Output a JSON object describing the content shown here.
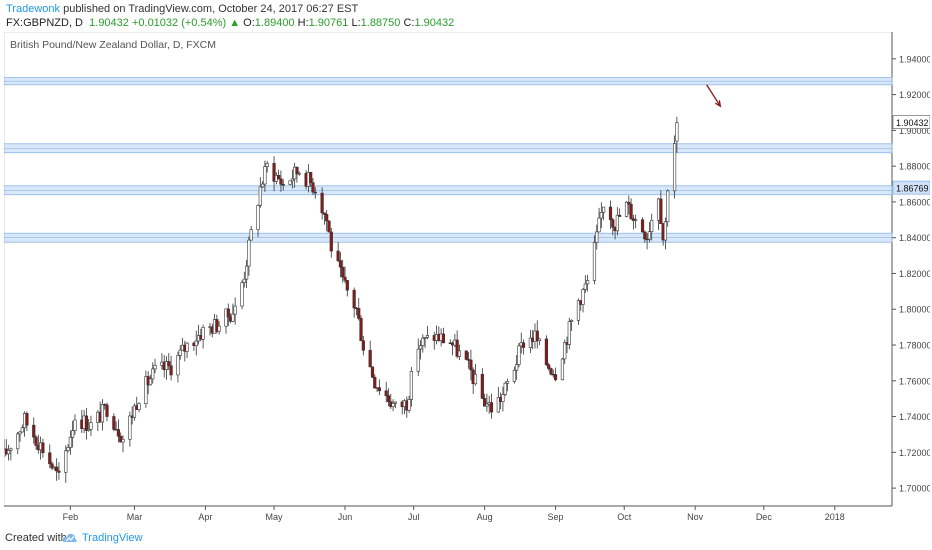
{
  "header": {
    "author": "Tradewonk",
    "published_text": "published on TradingView.com, October 24, 2017 06:27 EST",
    "symbol": "FX:GBPNZD, D",
    "last": "1.90432",
    "change": "+0.01032 (+0.54%)",
    "o_label": "O:",
    "o_value": "1.89400",
    "h_label": "H:",
    "h_value": "1.90761",
    "l_label": "L:",
    "l_value": "1.88750",
    "c_label": "C:",
    "c_value": "1.90432",
    "up_arrow": "▲"
  },
  "footer": {
    "created_with": "Created with",
    "brand": "TradingView",
    "logo_icon": "tradingview-cloud-icon"
  },
  "chart_data": {
    "type": "candlestick",
    "title": "British Pound/New Zealand Dollar, D, FXCM",
    "ylim": [
      1.69,
      1.955
    ],
    "y_ticks": [
      "1.94000",
      "1.92000",
      "1.90000",
      "1.88000",
      "1.86000",
      "1.84000",
      "1.82000",
      "1.80000",
      "1.78000",
      "1.76000",
      "1.74000",
      "1.72000",
      "1.70000"
    ],
    "x_ticks": [
      "Feb",
      "Mar",
      "Apr",
      "May",
      "Jun",
      "Jul",
      "Aug",
      "Sep",
      "Oct",
      "Nov",
      "Dec",
      "2018"
    ],
    "x_tick_dates": [
      "2017-02-01",
      "2017-03-01",
      "2017-04-01",
      "2017-05-01",
      "2017-06-01",
      "2017-07-01",
      "2017-08-01",
      "2017-09-01",
      "2017-10-01",
      "2017-11-01",
      "2017-12-01",
      "2018-01-01"
    ],
    "x_range": [
      "2017-01-03",
      "2018-01-26"
    ],
    "price_labels": [
      {
        "text": "1.90432",
        "value": 1.90432,
        "style": "plain"
      },
      {
        "text": "1.86769",
        "value": 1.86769,
        "style": "highlight"
      }
    ],
    "zones": [
      {
        "low": 1.9255,
        "high": 1.9295
      },
      {
        "low": 1.8875,
        "high": 1.8925
      },
      {
        "low": 1.864,
        "high": 1.869
      },
      {
        "low": 1.8375,
        "high": 1.8425
      }
    ],
    "annotation": {
      "type": "arrow",
      "color": "#8b1a1a",
      "from": {
        "date": "2017-11-06",
        "value": 1.9255
      },
      "to": {
        "date": "2017-11-12",
        "value": 1.9135
      }
    },
    "bull_color": "#ffffff",
    "bear_color": "#8b1a1a",
    "wick_color": "#333333",
    "zone_fill": "#cfe2f8",
    "zone_stroke": "#8ab4e8",
    "waypoints": [
      [
        "2017-01-03",
        1.718
      ],
      [
        "2017-01-12",
        1.738
      ],
      [
        "2017-01-20",
        1.722
      ],
      [
        "2017-01-27",
        1.705
      ],
      [
        "2017-02-03",
        1.74
      ],
      [
        "2017-02-10",
        1.735
      ],
      [
        "2017-02-17",
        1.745
      ],
      [
        "2017-02-24",
        1.728
      ],
      [
        "2017-03-03",
        1.752
      ],
      [
        "2017-03-10",
        1.765
      ],
      [
        "2017-03-17",
        1.768
      ],
      [
        "2017-03-24",
        1.78
      ],
      [
        "2017-03-31",
        1.788
      ],
      [
        "2017-04-07",
        1.792
      ],
      [
        "2017-04-14",
        1.8
      ],
      [
        "2017-04-18",
        1.82
      ],
      [
        "2017-04-21",
        1.842
      ],
      [
        "2017-04-25",
        1.868
      ],
      [
        "2017-04-28",
        1.88
      ],
      [
        "2017-05-05",
        1.87
      ],
      [
        "2017-05-12",
        1.878
      ],
      [
        "2017-05-19",
        1.868
      ],
      [
        "2017-05-24",
        1.85
      ],
      [
        "2017-05-26",
        1.835
      ],
      [
        "2017-05-31",
        1.815
      ],
      [
        "2017-06-06",
        1.8
      ],
      [
        "2017-06-09",
        1.78
      ],
      [
        "2017-06-14",
        1.76
      ],
      [
        "2017-06-19",
        1.752
      ],
      [
        "2017-06-23",
        1.745
      ],
      [
        "2017-06-28",
        1.748
      ],
      [
        "2017-07-03",
        1.78
      ],
      [
        "2017-07-10",
        1.785
      ],
      [
        "2017-07-17",
        1.782
      ],
      [
        "2017-07-21",
        1.775
      ],
      [
        "2017-07-26",
        1.765
      ],
      [
        "2017-07-31",
        1.75
      ],
      [
        "2017-08-04",
        1.745
      ],
      [
        "2017-08-09",
        1.752
      ],
      [
        "2017-08-14",
        1.768
      ],
      [
        "2017-08-18",
        1.782
      ],
      [
        "2017-08-23",
        1.785
      ],
      [
        "2017-08-28",
        1.77
      ],
      [
        "2017-09-01",
        1.765
      ],
      [
        "2017-09-06",
        1.785
      ],
      [
        "2017-09-11",
        1.805
      ],
      [
        "2017-09-15",
        1.815
      ],
      [
        "2017-09-19",
        1.84
      ],
      [
        "2017-09-22",
        1.86
      ],
      [
        "2017-09-27",
        1.848
      ],
      [
        "2017-10-02",
        1.858
      ],
      [
        "2017-10-06",
        1.85
      ],
      [
        "2017-10-11",
        1.842
      ],
      [
        "2017-10-16",
        1.865
      ],
      [
        "2017-10-18",
        1.84
      ],
      [
        "2017-10-19",
        1.848
      ],
      [
        "2017-10-20",
        1.87
      ],
      [
        "2017-10-23",
        1.894
      ],
      [
        "2017-10-24",
        1.904
      ]
    ]
  }
}
